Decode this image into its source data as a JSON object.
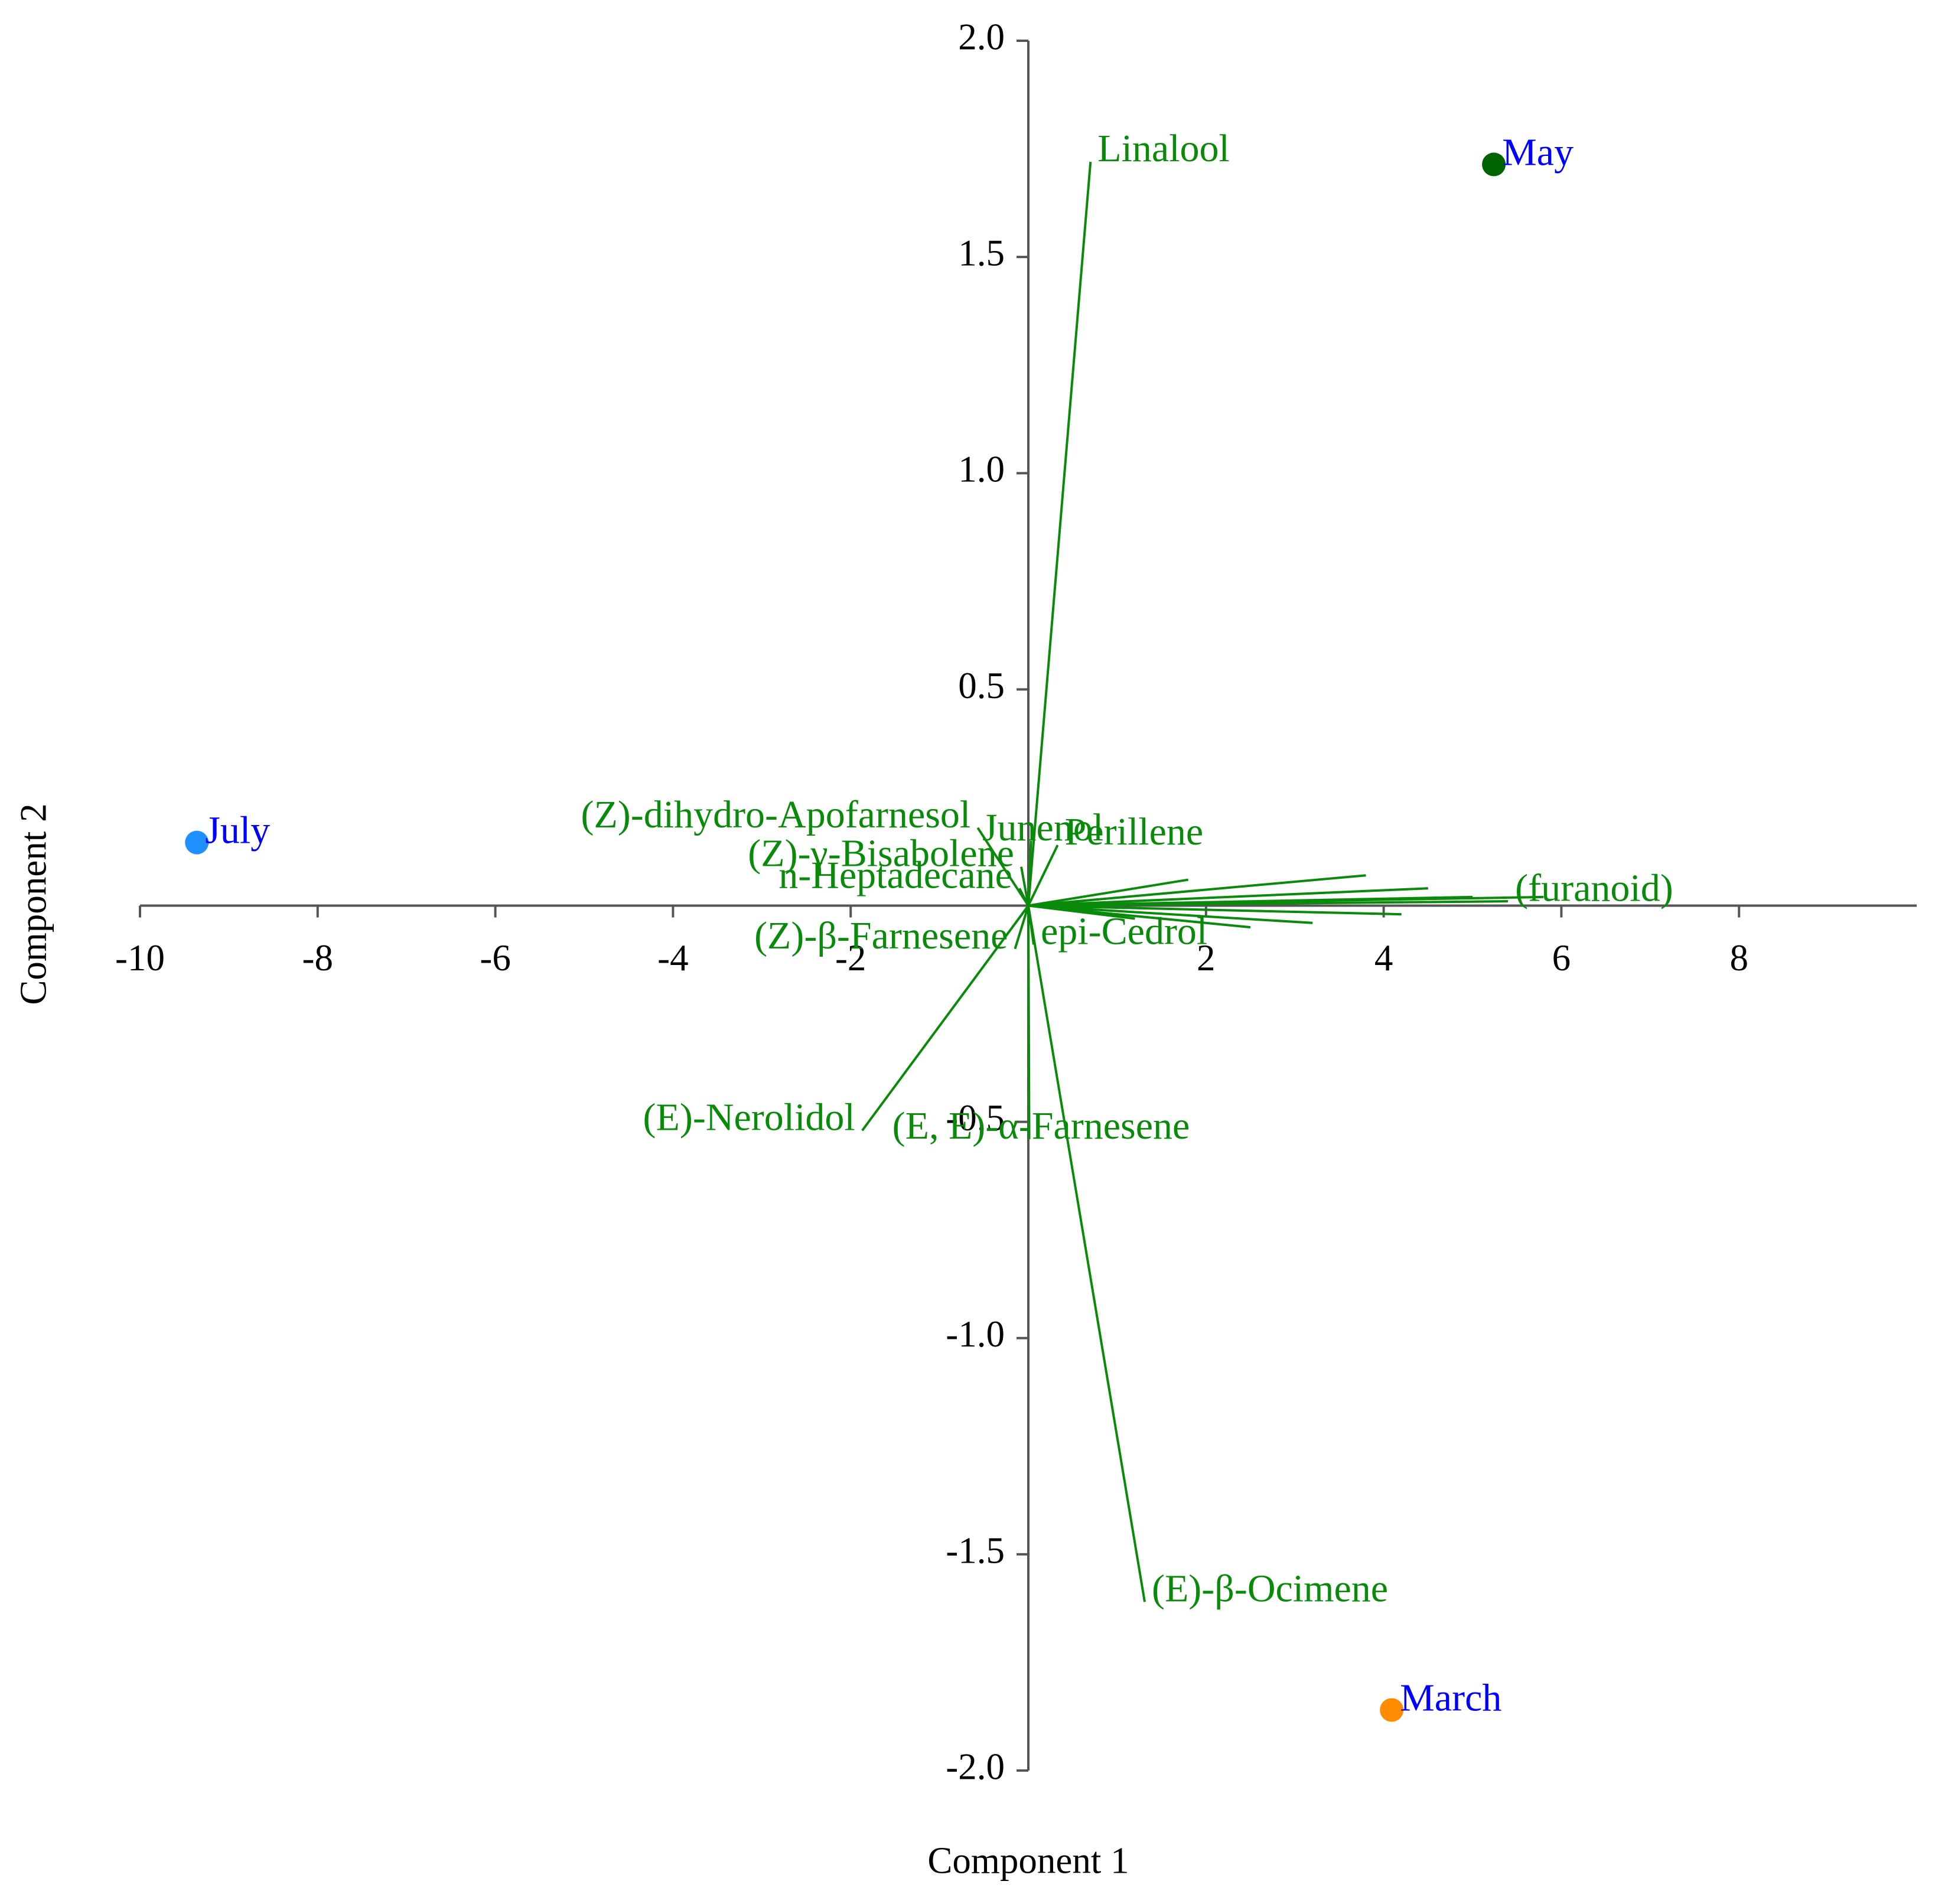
{
  "chart_data": {
    "type": "biplot",
    "xlabel": "Component 1",
    "ylabel": "Component 2",
    "xlim": [
      -10,
      10
    ],
    "ylim": [
      -2,
      2
    ],
    "xticks": [
      -10,
      -8,
      -6,
      -4,
      -2,
      2,
      4,
      6,
      8
    ],
    "yticks": [
      {
        "value": 2,
        "label": "2.0"
      },
      1.5,
      {
        "value": 1,
        "label": "1.0"
      },
      0.5,
      -0.5,
      {
        "value": -1,
        "label": "-1.0"
      },
      -1.5,
      {
        "value": -2,
        "label": "-2.0"
      }
    ],
    "score_label_color": "#0000ff",
    "scores": [
      {
        "name": "July",
        "color": "#1e90ff",
        "x": -9.36,
        "y": 0.146
      },
      {
        "name": "May",
        "color": "#006400",
        "x": 5.24,
        "y": 1.714
      },
      {
        "name": "March",
        "color": "#ff8c00",
        "x": 4.09,
        "y": -1.86
      }
    ],
    "loading_color": "#0a8a0a",
    "loadings": [
      {
        "label": "Linalool",
        "x": 0.7,
        "y": 1.72
      },
      {
        "label": "(E)-β-Ocimene",
        "x": 1.31,
        "y": -1.61
      },
      {
        "label": "(E)-Nerolidol",
        "x": -1.87,
        "y": -0.52
      },
      {
        "label": "(E, E)-α-Farnesene",
        "x": 0.01,
        "y": -0.54
      },
      {
        "label": "Junenol",
        "x": 0.03,
        "y": 0.15
      },
      {
        "label": "(Z)-dihydro-Apofarnesol",
        "x": -0.57,
        "y": 0.18
      },
      {
        "label": "(Z)-γ-Bisabolene",
        "x": -0.08,
        "y": 0.09
      },
      {
        "label": "n-Heptadecane",
        "x": -0.1,
        "y": 0.04
      },
      {
        "label": "Perillene",
        "x": 0.33,
        "y": 0.14
      },
      {
        "label": "(Z)-β-Farnesene",
        "x": -0.15,
        "y": -0.1
      },
      {
        "label": "epi-Cedrol",
        "x": 0.06,
        "y": -0.09
      },
      {
        "label": "(furanoid)",
        "x": 5.4,
        "y": 0.01
      },
      {
        "label": null,
        "x": 3.8,
        "y": 0.07
      },
      {
        "label": null,
        "x": 4.5,
        "y": 0.04
      },
      {
        "label": null,
        "x": 5.0,
        "y": 0.02
      },
      {
        "label": null,
        "x": 3.2,
        "y": -0.04
      },
      {
        "label": null,
        "x": 2.5,
        "y": -0.05
      },
      {
        "label": null,
        "x": 1.8,
        "y": 0.06
      },
      {
        "label": null,
        "x": 4.2,
        "y": -0.02
      },
      {
        "label": null,
        "x": 1.2,
        "y": -0.03
      },
      {
        "label": null,
        "x": 5.8,
        "y": 0.02
      }
    ]
  }
}
